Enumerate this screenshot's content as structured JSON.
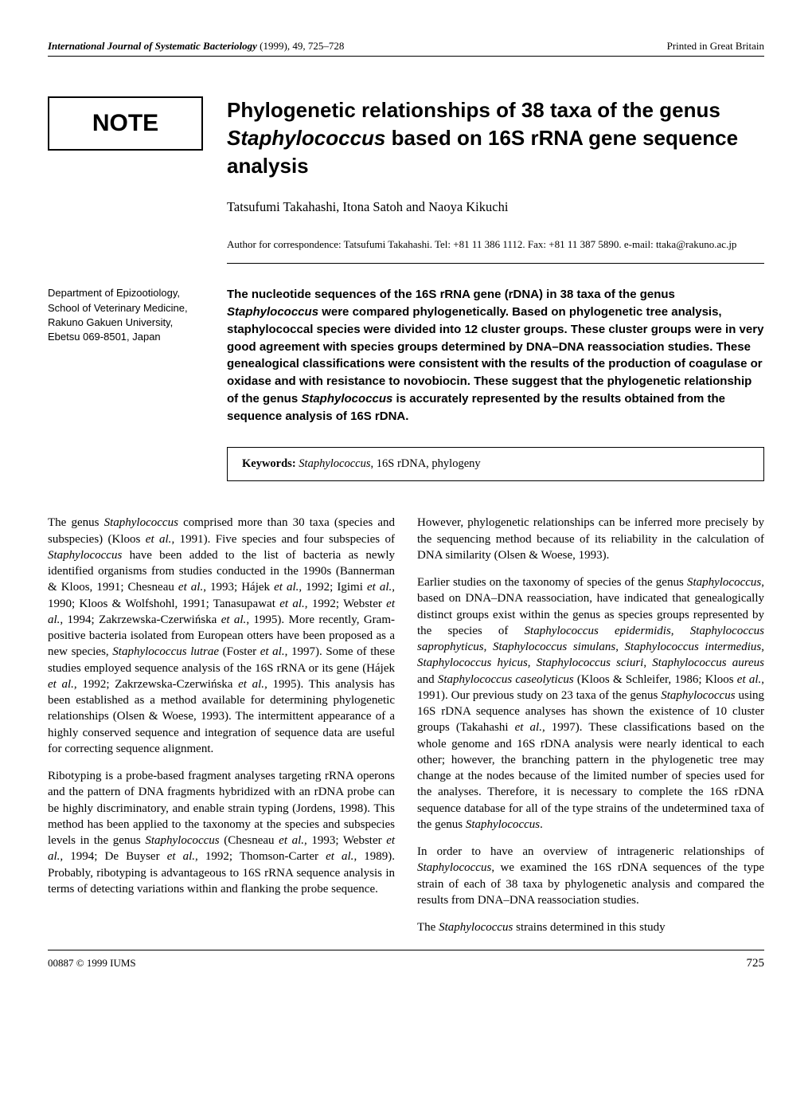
{
  "header": {
    "journal_title": "International Journal of Systematic Bacteriology",
    "year_vol_pages": " (1999), 49, 725–728",
    "printed": "Printed in Great Britain"
  },
  "note_label": "NOTE",
  "title_parts": {
    "pre": "Phylogenetic relationships of 38 taxa of the genus ",
    "genus": "Staphylococcus",
    "post": " based on 16S rRNA gene sequence analysis"
  },
  "authors": "Tatsufumi Takahashi, Itona Satoh and Naoya Kikuchi",
  "correspondence": "Author for correspondence: Tatsufumi Takahashi. Tel: +81 11 386 1112. Fax: +81 11 387 5890. e-mail: ttaka@rakuno.ac.jp",
  "affiliation": "Department of Epizootiology, School of Veterinary Medicine, Rakuno Gakuen University, Ebetsu 069-8501, Japan",
  "abstract_parts": {
    "t1": "The nucleotide sequences of the 16S rRNA gene (rDNA) in 38 taxa of the genus ",
    "g1": "Staphylococcus",
    "t2": " were compared phylogenetically. Based on phylogenetic tree analysis, staphylococcal species were divided into 12 cluster groups. These cluster groups were in very good agreement with species groups determined by DNA–DNA reassociation studies. These genealogical classifications were consistent with the results of the production of coagulase or oxidase and with resistance to novobiocin. These suggest that the phylogenetic relationship of the genus ",
    "g2": "Staphylococcus",
    "t3": " is accurately represented by the results obtained from the sequence analysis of 16S rDNA."
  },
  "keywords": {
    "label": "Keywords: ",
    "italic": "Staphylococcus",
    "rest": ", 16S rDNA, phylogeny"
  },
  "left_col": {
    "p1": {
      "a": "The genus ",
      "i1": "Staphylococcus",
      "b": " comprised more than 30 taxa (species and subspecies) (Kloos ",
      "i2": "et al.",
      "c": ", 1991). Five species and four subspecies of ",
      "i3": "Staphylococcus",
      "d": " have been added to the list of bacteria as newly identified organisms from studies conducted in the 1990s (Bannerman & Kloos, 1991; Chesneau ",
      "i4": "et al.",
      "e": ", 1993; Hájek ",
      "i5": "et al.",
      "f": ", 1992; Igimi ",
      "i6": "et al.",
      "g": ", 1990; Kloos & Wolfshohl, 1991; Tanasupawat ",
      "i7": "et al.",
      "h": ", 1992; Webster ",
      "i8": "et al.",
      "j": ", 1994; Zakrzewska-Czerwińska ",
      "i9": "et al.",
      "k": ", 1995). More recently, Gram-positive bacteria isolated from European otters have been proposed as a new species, ",
      "i10": "Staphylococcus lutrae",
      "l": " (Foster ",
      "i11": "et al.",
      "m": ", 1997). Some of these studies employed sequence analysis of the 16S rRNA or its gene (Hájek ",
      "i12": "et al.",
      "n": ", 1992; Zakrzewska-Czerwińska ",
      "i13": "et al.",
      "o": ", 1995). This analysis has been established as a method available for determining phylogenetic relationships (Olsen & Woese, 1993). The intermittent appearance of a highly conserved sequence and integration of sequence data are useful for correcting sequence alignment."
    },
    "p2": {
      "a": "Ribotyping is a probe-based fragment analyses targeting rRNA operons and the pattern of DNA fragments hybridized with an rDNA probe can be highly discriminatory, and enable strain typing (Jordens, 1998). This method has been applied to the taxonomy at the species and subspecies levels in the genus ",
      "i1": "Staphylococcus",
      "b": " (Chesneau ",
      "i2": "et al.",
      "c": ", 1993; Webster ",
      "i3": "et al.",
      "d": ", 1994; De Buyser ",
      "i4": "et al.",
      "e": ", 1992; Thomson-Carter ",
      "i5": "et al.",
      "f": ", 1989). Probably, ribotyping is advantageous to 16S rRNA sequence analysis in terms of detecting variations within and flanking the probe sequence."
    }
  },
  "right_col": {
    "p1": "However, phylogenetic relationships can be inferred more precisely by the sequencing method because of its reliability in the calculation of DNA similarity (Olsen & Woese, 1993).",
    "p2": {
      "a": "Earlier studies on the taxonomy of species of the genus ",
      "i1": "Staphylococcus",
      "b": ", based on DNA–DNA reassociation, have indicated that genealogically distinct groups exist within the genus as species groups represented by the species of ",
      "i2": "Staphylococcus epidermidis",
      "c": ", ",
      "i3": "Staphylococcus saprophyticus",
      "d": ", ",
      "i4": "Staphylococcus simulans",
      "e": ", ",
      "i5": "Staphylococcus intermedius",
      "f": ", ",
      "i6": "Staphylococcus hyicus",
      "g": ", ",
      "i7": "Staphylococcus sciuri",
      "h": ", ",
      "i8": "Staphylococcus aureus",
      "j": " and ",
      "i9": "Staphylococcus caseolyticus",
      "k": " (Kloos & Schleifer, 1986; Kloos ",
      "i10": "et al.",
      "l": ", 1991). Our previous study on 23 taxa of the genus ",
      "i11": "Staphylococcus",
      "m": " using 16S rDNA sequence analyses has shown the existence of 10 cluster groups (Takahashi ",
      "i12": "et al.",
      "n": ", 1997). These classifications based on the whole genome and 16S rDNA analysis were nearly identical to each other; however, the branching pattern in the phylogenetic tree may change at the nodes because of the limited number of species used for the analyses. Therefore, it is necessary to complete the 16S rDNA sequence database for all of the type strains of the undetermined taxa of the genus ",
      "i13": "Staphylococcus",
      "o": "."
    },
    "p3": {
      "a": "In order to have an overview of intrageneric relationships of ",
      "i1": "Staphylococcus",
      "b": ", we examined the 16S rDNA sequences of the type strain of each of 38 taxa by phylogenetic analysis and compared the results from DNA–DNA reassociation studies."
    },
    "p4": {
      "a": "The ",
      "i1": "Staphylococcus",
      "b": " strains determined in this study"
    }
  },
  "footer": {
    "copyright": "00887 © 1999 IUMS",
    "pagenum": "725"
  }
}
